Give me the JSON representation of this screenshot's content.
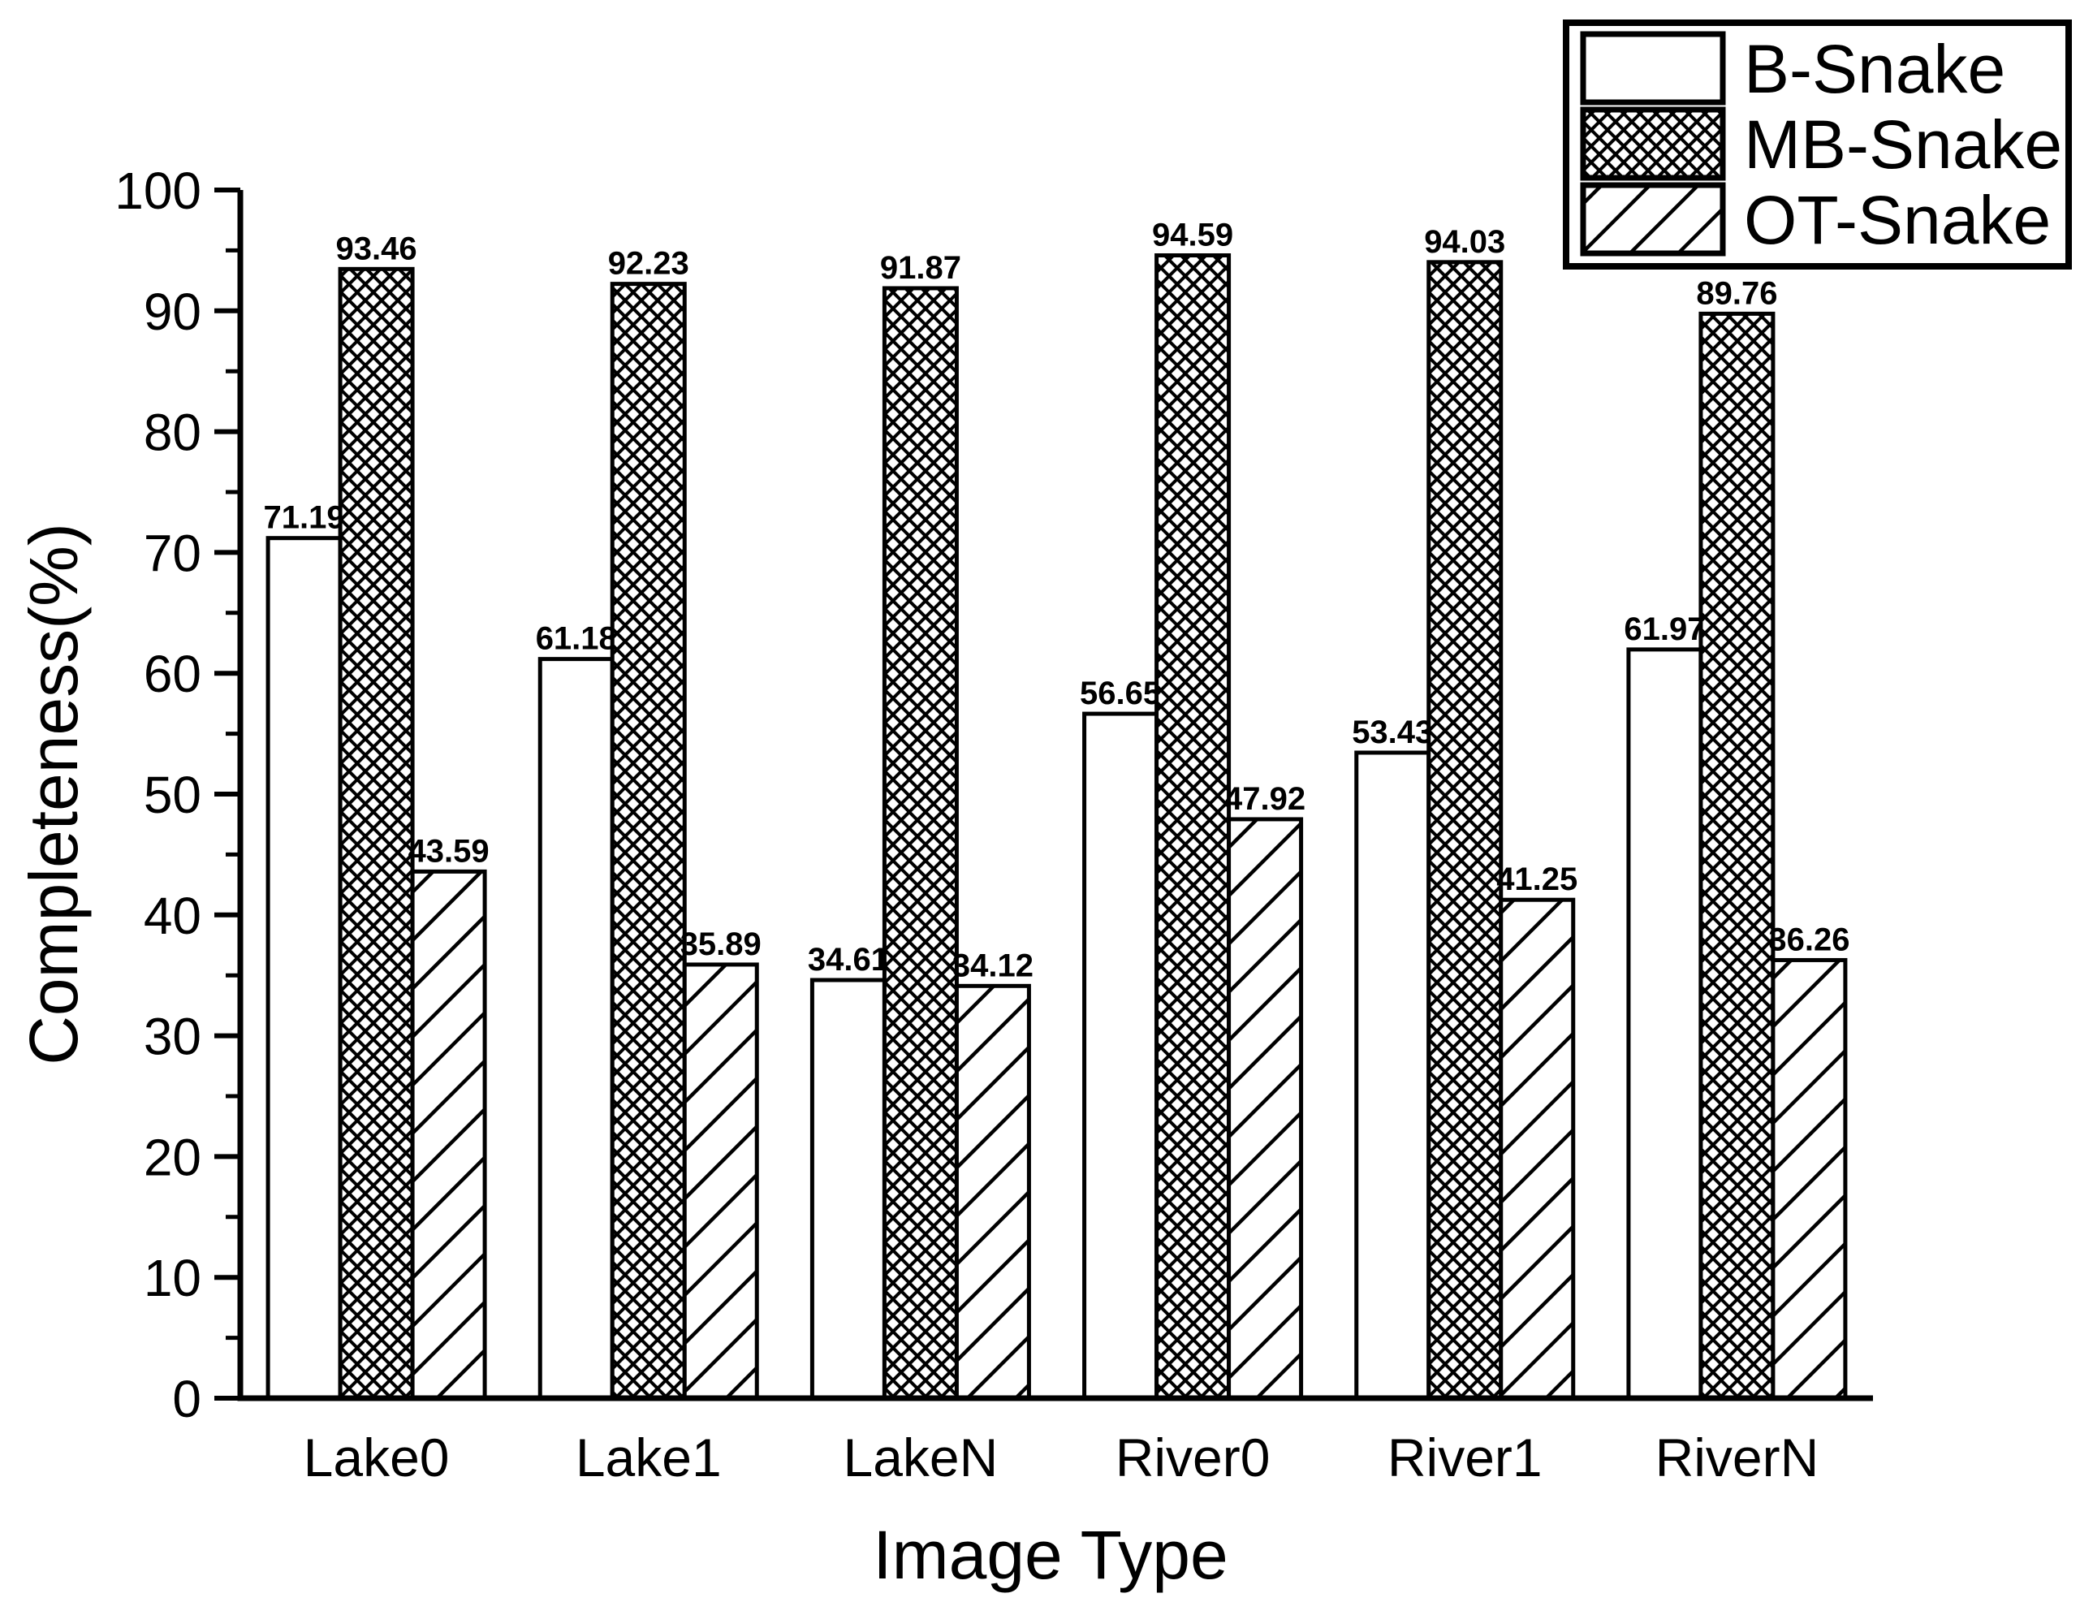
{
  "chart_data": {
    "type": "bar",
    "title": "",
    "xlabel": "Image Type",
    "ylabel": "Completeness(%)",
    "categories": [
      "Lake0",
      "Lake1",
      "LakeN",
      "River0",
      "River1",
      "RiverN"
    ],
    "series": [
      {
        "name": "B-Snake",
        "pattern": "solid-white",
        "values": [
          71.19,
          61.18,
          34.61,
          56.65,
          53.43,
          61.97
        ]
      },
      {
        "name": "MB-Snake",
        "pattern": "crosshatch",
        "values": [
          93.46,
          92.23,
          91.87,
          94.59,
          94.03,
          89.76
        ]
      },
      {
        "name": "OT-Snake",
        "pattern": "diagonal",
        "values": [
          43.59,
          35.89,
          34.12,
          47.92,
          41.25,
          36.26
        ]
      }
    ],
    "ylim": [
      0,
      100
    ],
    "ytick_major_step": 10,
    "ytick_minor_step": 5,
    "ytick_labels": [
      "0",
      "10",
      "20",
      "30",
      "40",
      "50",
      "60",
      "70",
      "80",
      "90",
      "100"
    ],
    "bar_value_labels": true,
    "legend_position": "top-right",
    "grid": false,
    "colors": {
      "foreground": "#000000",
      "background": "#ffffff"
    }
  }
}
